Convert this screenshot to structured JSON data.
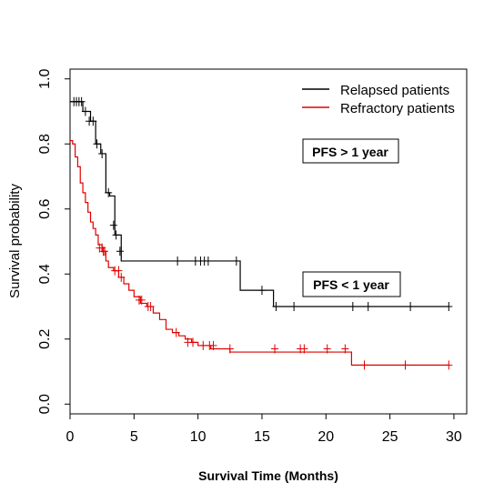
{
  "chart_data": {
    "type": "line",
    "xlabel": "Survival Time (Months)",
    "ylabel": "Survival probability",
    "xlim": [
      0,
      31
    ],
    "ylim": [
      -0.03,
      1.03
    ],
    "x_ticks": [
      0,
      5,
      10,
      15,
      20,
      25,
      30
    ],
    "y_ticks": [
      0.0,
      0.2,
      0.4,
      0.6,
      0.8,
      1.0
    ],
    "x_tick_labels": [
      "0",
      "5",
      "10",
      "15",
      "20",
      "25",
      "30"
    ],
    "y_tick_labels": [
      "0.0",
      "0.2",
      "0.4",
      "0.6",
      "0.8",
      "1.0"
    ],
    "legend_position": "top-right",
    "series": [
      {
        "name": "Relapsed patients",
        "color": "#000000",
        "step_x": [
          0,
          1.0,
          1.6,
          2.0,
          2.4,
          2.8,
          3.1,
          3.5,
          4.0,
          4.3,
          8.4,
          13.3,
          13.6,
          15.9,
          29.6
        ],
        "step_y": [
          0.93,
          0.9,
          0.87,
          0.8,
          0.77,
          0.65,
          0.64,
          0.52,
          0.44,
          0.44,
          0.44,
          0.35,
          0.35,
          0.3,
          0.3
        ],
        "censor_x": [
          0.3,
          0.5,
          0.7,
          0.9,
          1.2,
          1.5,
          1.8,
          2.1,
          2.5,
          3.0,
          3.4,
          3.6,
          3.9
        ],
        "censor_y": [
          0.93,
          0.93,
          0.93,
          0.93,
          0.9,
          0.87,
          0.87,
          0.8,
          0.77,
          0.65,
          0.55,
          0.52,
          0.47
        ],
        "censor2_x": [
          8.4,
          9.8,
          10.2,
          10.5,
          10.8,
          13.0,
          15.0,
          16.1,
          17.5,
          22.1,
          23.3,
          26.6,
          29.6
        ],
        "censor2_y": [
          0.44,
          0.44,
          0.44,
          0.44,
          0.44,
          0.44,
          0.35,
          0.3,
          0.3,
          0.3,
          0.3,
          0.3,
          0.3
        ]
      },
      {
        "name": "Refractory patients",
        "color": "#e00000",
        "step_x": [
          0,
          0.2,
          0.4,
          0.6,
          0.8,
          1.0,
          1.2,
          1.4,
          1.6,
          1.8,
          2.0,
          2.2,
          2.5,
          2.8,
          3.0,
          3.4,
          3.8,
          4.2,
          4.6,
          5.0,
          5.5,
          6.0,
          6.5,
          7.0,
          7.5,
          8.0,
          8.5,
          9.0,
          9.5,
          10.0,
          11.0,
          12.5,
          16.0,
          21.9,
          22.0,
          29.6
        ],
        "step_y": [
          0.81,
          0.8,
          0.76,
          0.73,
          0.68,
          0.65,
          0.62,
          0.59,
          0.56,
          0.54,
          0.52,
          0.49,
          0.47,
          0.44,
          0.42,
          0.41,
          0.39,
          0.37,
          0.35,
          0.33,
          0.31,
          0.3,
          0.28,
          0.26,
          0.23,
          0.22,
          0.21,
          0.2,
          0.19,
          0.18,
          0.17,
          0.16,
          0.16,
          0.16,
          0.12,
          0.12
        ],
        "censor_x": [
          2.3,
          2.5,
          2.6,
          2.7,
          3.5,
          3.8,
          4.0,
          5.4,
          5.6,
          6.1,
          6.3,
          8.3,
          9.2,
          9.6,
          10.4,
          10.9,
          11.2,
          12.5
        ],
        "censor_y": [
          0.48,
          0.48,
          0.47,
          0.47,
          0.41,
          0.41,
          0.39,
          0.32,
          0.32,
          0.3,
          0.3,
          0.22,
          0.19,
          0.19,
          0.18,
          0.18,
          0.18,
          0.17
        ],
        "censor2_x": [
          16.0,
          18.0,
          18.3,
          20.1,
          21.5,
          23.0,
          26.2,
          29.6
        ],
        "censor2_y": [
          0.17,
          0.17,
          0.17,
          0.17,
          0.17,
          0.12,
          0.12,
          0.12
        ]
      }
    ],
    "annotations": [
      "PFS > 1 year",
      "PFS < 1 year"
    ]
  }
}
